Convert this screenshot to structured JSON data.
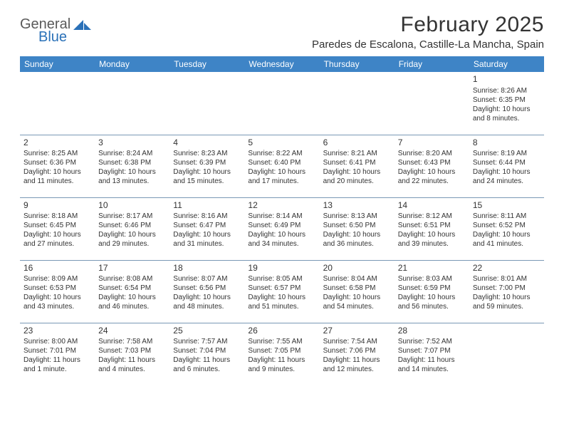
{
  "brand": {
    "name1": "General",
    "name2": "Blue",
    "tri_color": "#2a71b8",
    "text_color": "#5a5a5a"
  },
  "title": "February 2025",
  "location": "Paredes de Escalona, Castille-La Mancha, Spain",
  "colors": {
    "header_bg": "#3e84c6",
    "header_text": "#ffffff",
    "cell_border": "#7a99b5",
    "body_text": "#333333",
    "page_bg": "#ffffff"
  },
  "day_headers": [
    "Sunday",
    "Monday",
    "Tuesday",
    "Wednesday",
    "Thursday",
    "Friday",
    "Saturday"
  ],
  "weeks": [
    [
      null,
      null,
      null,
      null,
      null,
      null,
      {
        "n": "1",
        "sr": "Sunrise: 8:26 AM",
        "ss": "Sunset: 6:35 PM",
        "d1": "Daylight: 10 hours",
        "d2": "and 8 minutes."
      }
    ],
    [
      {
        "n": "2",
        "sr": "Sunrise: 8:25 AM",
        "ss": "Sunset: 6:36 PM",
        "d1": "Daylight: 10 hours",
        "d2": "and 11 minutes."
      },
      {
        "n": "3",
        "sr": "Sunrise: 8:24 AM",
        "ss": "Sunset: 6:38 PM",
        "d1": "Daylight: 10 hours",
        "d2": "and 13 minutes."
      },
      {
        "n": "4",
        "sr": "Sunrise: 8:23 AM",
        "ss": "Sunset: 6:39 PM",
        "d1": "Daylight: 10 hours",
        "d2": "and 15 minutes."
      },
      {
        "n": "5",
        "sr": "Sunrise: 8:22 AM",
        "ss": "Sunset: 6:40 PM",
        "d1": "Daylight: 10 hours",
        "d2": "and 17 minutes."
      },
      {
        "n": "6",
        "sr": "Sunrise: 8:21 AM",
        "ss": "Sunset: 6:41 PM",
        "d1": "Daylight: 10 hours",
        "d2": "and 20 minutes."
      },
      {
        "n": "7",
        "sr": "Sunrise: 8:20 AM",
        "ss": "Sunset: 6:43 PM",
        "d1": "Daylight: 10 hours",
        "d2": "and 22 minutes."
      },
      {
        "n": "8",
        "sr": "Sunrise: 8:19 AM",
        "ss": "Sunset: 6:44 PM",
        "d1": "Daylight: 10 hours",
        "d2": "and 24 minutes."
      }
    ],
    [
      {
        "n": "9",
        "sr": "Sunrise: 8:18 AM",
        "ss": "Sunset: 6:45 PM",
        "d1": "Daylight: 10 hours",
        "d2": "and 27 minutes."
      },
      {
        "n": "10",
        "sr": "Sunrise: 8:17 AM",
        "ss": "Sunset: 6:46 PM",
        "d1": "Daylight: 10 hours",
        "d2": "and 29 minutes."
      },
      {
        "n": "11",
        "sr": "Sunrise: 8:16 AM",
        "ss": "Sunset: 6:47 PM",
        "d1": "Daylight: 10 hours",
        "d2": "and 31 minutes."
      },
      {
        "n": "12",
        "sr": "Sunrise: 8:14 AM",
        "ss": "Sunset: 6:49 PM",
        "d1": "Daylight: 10 hours",
        "d2": "and 34 minutes."
      },
      {
        "n": "13",
        "sr": "Sunrise: 8:13 AM",
        "ss": "Sunset: 6:50 PM",
        "d1": "Daylight: 10 hours",
        "d2": "and 36 minutes."
      },
      {
        "n": "14",
        "sr": "Sunrise: 8:12 AM",
        "ss": "Sunset: 6:51 PM",
        "d1": "Daylight: 10 hours",
        "d2": "and 39 minutes."
      },
      {
        "n": "15",
        "sr": "Sunrise: 8:11 AM",
        "ss": "Sunset: 6:52 PM",
        "d1": "Daylight: 10 hours",
        "d2": "and 41 minutes."
      }
    ],
    [
      {
        "n": "16",
        "sr": "Sunrise: 8:09 AM",
        "ss": "Sunset: 6:53 PM",
        "d1": "Daylight: 10 hours",
        "d2": "and 43 minutes."
      },
      {
        "n": "17",
        "sr": "Sunrise: 8:08 AM",
        "ss": "Sunset: 6:54 PM",
        "d1": "Daylight: 10 hours",
        "d2": "and 46 minutes."
      },
      {
        "n": "18",
        "sr": "Sunrise: 8:07 AM",
        "ss": "Sunset: 6:56 PM",
        "d1": "Daylight: 10 hours",
        "d2": "and 48 minutes."
      },
      {
        "n": "19",
        "sr": "Sunrise: 8:05 AM",
        "ss": "Sunset: 6:57 PM",
        "d1": "Daylight: 10 hours",
        "d2": "and 51 minutes."
      },
      {
        "n": "20",
        "sr": "Sunrise: 8:04 AM",
        "ss": "Sunset: 6:58 PM",
        "d1": "Daylight: 10 hours",
        "d2": "and 54 minutes."
      },
      {
        "n": "21",
        "sr": "Sunrise: 8:03 AM",
        "ss": "Sunset: 6:59 PM",
        "d1": "Daylight: 10 hours",
        "d2": "and 56 minutes."
      },
      {
        "n": "22",
        "sr": "Sunrise: 8:01 AM",
        "ss": "Sunset: 7:00 PM",
        "d1": "Daylight: 10 hours",
        "d2": "and 59 minutes."
      }
    ],
    [
      {
        "n": "23",
        "sr": "Sunrise: 8:00 AM",
        "ss": "Sunset: 7:01 PM",
        "d1": "Daylight: 11 hours",
        "d2": "and 1 minute."
      },
      {
        "n": "24",
        "sr": "Sunrise: 7:58 AM",
        "ss": "Sunset: 7:03 PM",
        "d1": "Daylight: 11 hours",
        "d2": "and 4 minutes."
      },
      {
        "n": "25",
        "sr": "Sunrise: 7:57 AM",
        "ss": "Sunset: 7:04 PM",
        "d1": "Daylight: 11 hours",
        "d2": "and 6 minutes."
      },
      {
        "n": "26",
        "sr": "Sunrise: 7:55 AM",
        "ss": "Sunset: 7:05 PM",
        "d1": "Daylight: 11 hours",
        "d2": "and 9 minutes."
      },
      {
        "n": "27",
        "sr": "Sunrise: 7:54 AM",
        "ss": "Sunset: 7:06 PM",
        "d1": "Daylight: 11 hours",
        "d2": "and 12 minutes."
      },
      {
        "n": "28",
        "sr": "Sunrise: 7:52 AM",
        "ss": "Sunset: 7:07 PM",
        "d1": "Daylight: 11 hours",
        "d2": "and 14 minutes."
      },
      null
    ]
  ]
}
